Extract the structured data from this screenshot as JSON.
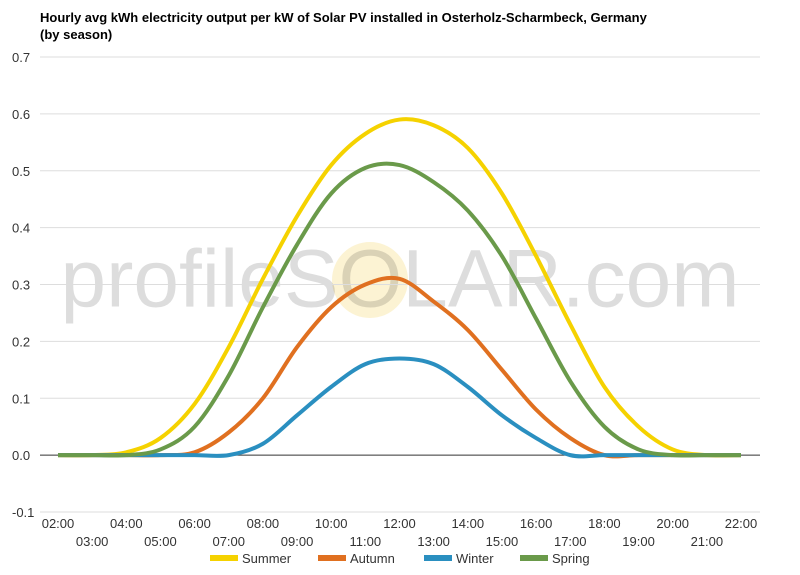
{
  "chart_data": {
    "type": "line",
    "title": "Hourly avg kWh electricity output per kW of Solar PV installed in Osterholz-Scharmbeck, Germany (by season)",
    "watermark": "profileSOLAR.com",
    "categories": [
      "02:00",
      "03:00",
      "04:00",
      "05:00",
      "06:00",
      "07:00",
      "08:00",
      "09:00",
      "10:00",
      "11:00",
      "12:00",
      "13:00",
      "14:00",
      "15:00",
      "16:00",
      "17:00",
      "18:00",
      "19:00",
      "20:00",
      "21:00",
      "22:00"
    ],
    "series": [
      {
        "name": "Summer",
        "color": "#f5d200",
        "values": [
          0,
          0,
          0.005,
          0.03,
          0.09,
          0.19,
          0.31,
          0.42,
          0.51,
          0.565,
          0.59,
          0.58,
          0.54,
          0.46,
          0.35,
          0.23,
          0.12,
          0.05,
          0.01,
          0,
          0
        ]
      },
      {
        "name": "Autumn",
        "color": "#e07020",
        "values": [
          0,
          0,
          0,
          0,
          0.005,
          0.04,
          0.1,
          0.19,
          0.26,
          0.3,
          0.31,
          0.27,
          0.22,
          0.15,
          0.08,
          0.03,
          0,
          0,
          0,
          0,
          0
        ]
      },
      {
        "name": "Winter",
        "color": "#2a8fc0",
        "values": [
          0,
          0,
          0,
          0,
          0,
          0,
          0.02,
          0.07,
          0.12,
          0.16,
          0.17,
          0.16,
          0.12,
          0.07,
          0.03,
          0,
          0,
          0,
          0,
          0,
          0
        ]
      },
      {
        "name": "Spring",
        "color": "#6a9a4a",
        "values": [
          0,
          0,
          0,
          0.01,
          0.05,
          0.14,
          0.26,
          0.37,
          0.46,
          0.505,
          0.51,
          0.48,
          0.43,
          0.35,
          0.24,
          0.13,
          0.05,
          0.01,
          0,
          0,
          0
        ]
      }
    ],
    "ylim": [
      -0.1,
      0.7
    ],
    "yticks": [
      -0.1,
      {
        "value": 0,
        "label": "0.0"
      },
      0.1,
      0.2,
      0.3,
      0.4,
      0.5,
      0.6,
      0.7
    ],
    "grid": true
  }
}
